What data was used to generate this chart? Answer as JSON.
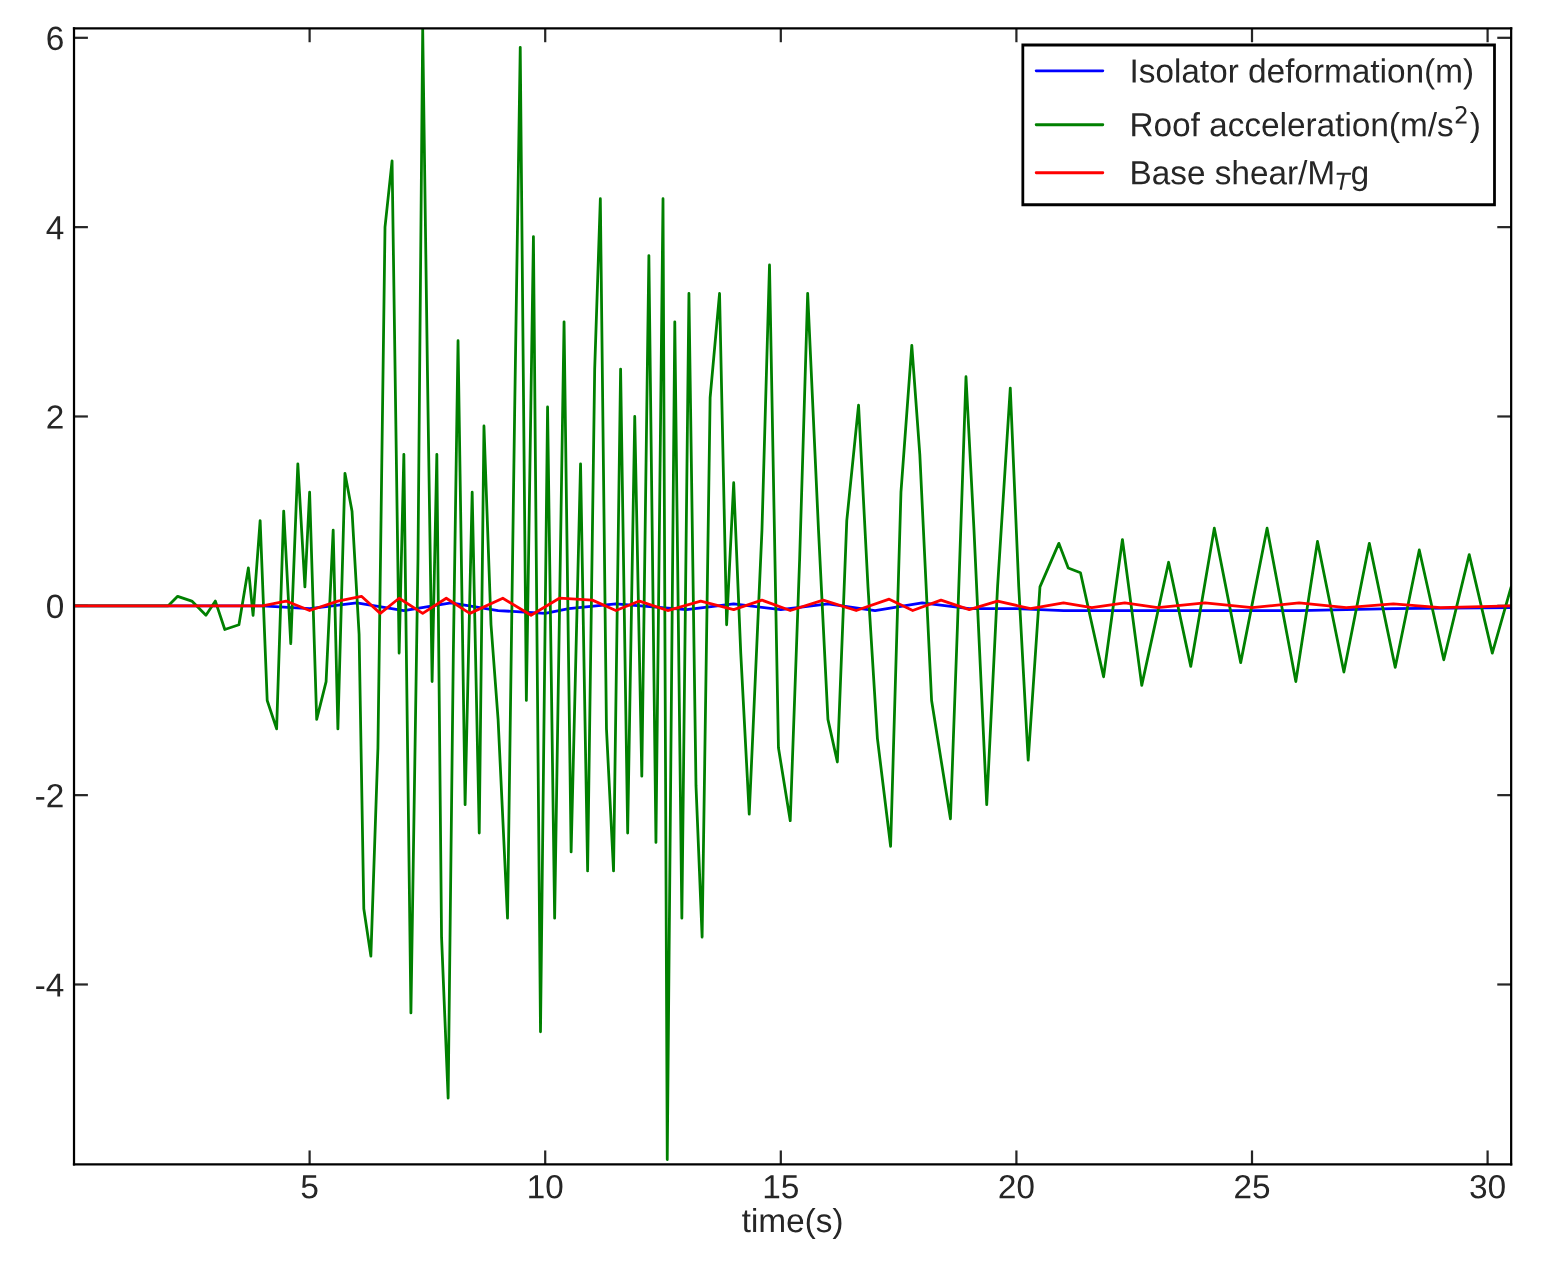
{
  "chart_data": {
    "type": "line",
    "xlabel": "time(s)",
    "xlim": [
      0,
      30.5
    ],
    "xticks": [
      5,
      10,
      15,
      20,
      25,
      30
    ],
    "ylim": [
      -5.9,
      6.1
    ],
    "yticks": [
      -4,
      -2,
      0,
      2,
      4,
      6
    ],
    "grid": false,
    "legend": "top right",
    "marker": "none",
    "line_style": "solid",
    "series": [
      {
        "name": "Isolator deformation(m)",
        "color": "#0000ff",
        "x": [
          0,
          4,
          5,
          6,
          7,
          8,
          9,
          10,
          10.5,
          11.5,
          13,
          14,
          15,
          16,
          17,
          18,
          19,
          20,
          21,
          22,
          24,
          26,
          28,
          30.5
        ],
        "values": [
          0,
          0,
          -0.03,
          0.03,
          -0.05,
          0.03,
          -0.05,
          -0.08,
          -0.03,
          0.02,
          -0.04,
          0.02,
          -0.04,
          0.02,
          -0.05,
          0.03,
          -0.03,
          -0.03,
          -0.05,
          -0.05,
          -0.05,
          -0.05,
          -0.03,
          -0.02
        ]
      },
      {
        "name": "Roof acceleration(m/s$^{2}$)",
        "color": "#008000",
        "x": [
          0,
          2.0,
          2.2,
          2.5,
          2.8,
          3.0,
          3.2,
          3.5,
          3.7,
          3.8,
          3.95,
          4.1,
          4.3,
          4.45,
          4.6,
          4.75,
          4.9,
          5.0,
          5.15,
          5.35,
          5.5,
          5.6,
          5.75,
          5.9,
          6.05,
          6.15,
          6.3,
          6.45,
          6.6,
          6.75,
          6.9,
          7.0,
          7.15,
          7.3,
          7.4,
          7.5,
          7.6,
          7.7,
          7.8,
          7.94,
          8.05,
          8.15,
          8.3,
          8.45,
          8.6,
          8.7,
          8.85,
          9.0,
          9.2,
          9.35,
          9.47,
          9.6,
          9.75,
          9.9,
          10.05,
          10.2,
          10.4,
          10.55,
          10.75,
          10.9,
          11.05,
          11.17,
          11.3,
          11.45,
          11.6,
          11.75,
          11.9,
          12.05,
          12.2,
          12.35,
          12.5,
          12.59,
          12.75,
          12.9,
          13.05,
          13.2,
          13.33,
          13.5,
          13.7,
          13.85,
          14.0,
          14.15,
          14.33,
          14.6,
          14.76,
          14.95,
          15.2,
          15.4,
          15.57,
          15.8,
          16.0,
          16.2,
          16.4,
          16.65,
          16.85,
          17.05,
          17.33,
          17.55,
          17.78,
          17.95,
          18.2,
          18.6,
          18.75,
          18.93,
          19.1,
          19.37,
          19.6,
          19.87,
          20.05,
          20.25,
          20.5,
          20.9,
          21.1,
          21.36,
          21.85,
          22.25,
          22.66,
          23.23,
          23.7,
          24.2,
          24.76,
          25.32,
          25.93,
          26.39,
          26.95,
          27.49,
          28.04,
          28.55,
          29.07,
          29.61,
          30.1,
          30.5
        ],
        "values": [
          0,
          0,
          0.1,
          0.05,
          -0.1,
          0.05,
          -0.25,
          -0.2,
          0.4,
          -0.1,
          0.9,
          -1.0,
          -1.3,
          1.0,
          -0.4,
          1.5,
          0.2,
          1.2,
          -1.2,
          -0.8,
          0.8,
          -1.3,
          1.4,
          1.0,
          -0.3,
          -3.2,
          -3.7,
          -1.5,
          4.0,
          4.7,
          -0.5,
          1.6,
          -4.3,
          0.5,
          6.1,
          2.5,
          -0.8,
          1.6,
          -3.5,
          -5.2,
          -0.5,
          2.8,
          -2.1,
          1.2,
          -2.4,
          1.9,
          -0.2,
          -1.2,
          -3.3,
          2.0,
          5.9,
          -1.0,
          3.9,
          -4.5,
          2.1,
          -3.3,
          3.0,
          -2.6,
          1.5,
          -2.8,
          2.5,
          4.3,
          -1.3,
          -2.8,
          2.5,
          -2.4,
          2.0,
          -1.8,
          3.7,
          -2.5,
          4.3,
          -5.85,
          3.0,
          -3.3,
          3.3,
          -1.9,
          -3.5,
          2.2,
          3.3,
          -0.2,
          1.3,
          -0.5,
          -2.2,
          0.8,
          3.6,
          -1.5,
          -2.27,
          0.5,
          3.3,
          0.8,
          -1.2,
          -1.65,
          0.9,
          2.12,
          0.2,
          -1.4,
          -2.54,
          1.2,
          2.75,
          1.6,
          -1.0,
          -2.25,
          -0.2,
          2.42,
          0.8,
          -2.1,
          0.2,
          2.3,
          0.2,
          -1.63,
          0.2,
          0.66,
          0.4,
          0.35,
          -0.75,
          0.7,
          -0.84,
          0.46,
          -0.64,
          0.82,
          -0.6,
          0.82,
          -0.8,
          0.68,
          -0.7,
          0.66,
          -0.65,
          0.59,
          -0.57,
          0.54,
          -0.5,
          0.2
        ]
      },
      {
        "name": "Base shear/M$_{T}$g",
        "color": "#ff0000",
        "x": [
          0,
          4,
          4.5,
          5,
          5.6,
          6.1,
          6.5,
          6.9,
          7.4,
          7.9,
          8.4,
          9.1,
          9.7,
          10.3,
          11,
          11.5,
          12,
          12.6,
          13.3,
          14,
          14.6,
          15.2,
          15.9,
          16.6,
          17.3,
          17.8,
          18.4,
          19.0,
          19.6,
          20.3,
          21,
          21.6,
          22.3,
          23,
          24,
          25,
          26,
          27,
          28,
          29,
          30.5
        ],
        "values": [
          0,
          0,
          0.05,
          -0.05,
          0.05,
          0.1,
          -0.08,
          0.08,
          -0.08,
          0.08,
          -0.08,
          0.08,
          -0.1,
          0.08,
          0.06,
          -0.05,
          0.05,
          -0.05,
          0.05,
          -0.04,
          0.06,
          -0.05,
          0.06,
          -0.05,
          0.07,
          -0.05,
          0.06,
          -0.04,
          0.05,
          -0.03,
          0.03,
          -0.02,
          0.03,
          -0.02,
          0.03,
          -0.02,
          0.03,
          -0.02,
          0.02,
          -0.02,
          0
        ]
      }
    ]
  }
}
